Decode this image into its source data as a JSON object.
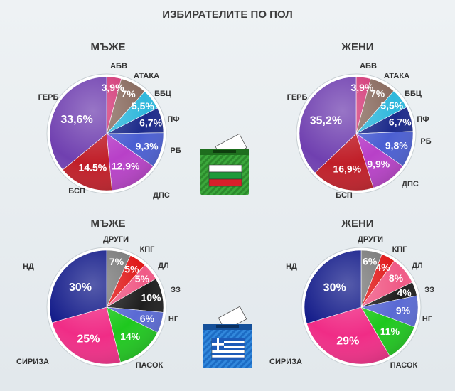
{
  "title": "ИЗБИРАТЕЛИТЕ ПО ПОЛ",
  "chart_data": [
    {
      "type": "pie",
      "title": "МЪЖЕ",
      "country": "Bulgaria",
      "categories": [
        "АБВ",
        "АТАКА",
        "ББЦ",
        "ПФ",
        "РБ",
        "ДПС",
        "БСП",
        "ГЕРБ"
      ],
      "values": [
        3.9,
        7,
        5.5,
        6.7,
        9.3,
        12.9,
        14.5,
        33.6
      ],
      "labels": [
        "3,9%",
        "7%",
        "5,5%",
        "6,7%",
        "9,3%",
        "12,9%",
        "14.5%",
        "33,6%"
      ],
      "colors": [
        "#d33a78",
        "#8a6c60",
        "#30b8dc",
        "#1c2a8a",
        "#4a5ed2",
        "#b840c8",
        "#c01e28",
        "#7040b0"
      ]
    },
    {
      "type": "pie",
      "title": "ЖЕНИ",
      "country": "Bulgaria",
      "categories": [
        "АБВ",
        "АТАКА",
        "ББЦ",
        "ПФ",
        "РБ",
        "ДПС",
        "БСП",
        "ГЕРБ"
      ],
      "values": [
        3.9,
        7,
        5.5,
        6.7,
        9.8,
        9.9,
        16.9,
        35.2
      ],
      "labels": [
        "3,9%",
        "7%",
        "5,5%",
        "6,7%",
        "9,8%",
        "9,9%",
        "16,9%",
        "35,2%"
      ],
      "colors": [
        "#d33a78",
        "#8a6c60",
        "#30b8dc",
        "#1c2a8a",
        "#4a5ed2",
        "#b840c8",
        "#c01e28",
        "#7040b0"
      ]
    },
    {
      "type": "pie",
      "title": "МЪЖЕ",
      "country": "Greece",
      "categories": [
        "ДРУГИ",
        "КПГ",
        "ДЛ",
        "ЗЗ",
        "НГ",
        "ПАСОК",
        "СИРИЗА",
        "НД"
      ],
      "values": [
        7,
        5,
        5,
        10,
        6,
        14,
        25,
        30
      ],
      "labels": [
        "7%",
        "5%",
        "5%",
        "10%",
        "6%",
        "14%",
        "25%",
        "30%"
      ],
      "colors": [
        "#7a7a7a",
        "#e01818",
        "#f05a86",
        "#1e1e1e",
        "#5a6ad4",
        "#1ec81e",
        "#f02c86",
        "#141c8a"
      ]
    },
    {
      "type": "pie",
      "title": "ЖЕНИ",
      "country": "Greece",
      "categories": [
        "ДРУГИ",
        "КПГ",
        "ДЛ",
        "ЗЗ",
        "НГ",
        "ПАСОК",
        "СИРИЗА",
        "НД"
      ],
      "values": [
        6,
        4,
        8,
        4,
        9,
        11,
        29,
        30
      ],
      "labels": [
        "6%",
        "4%",
        "8%",
        "4%",
        "9%",
        "11%",
        "29%",
        "30%"
      ],
      "colors": [
        "#7a7a7a",
        "#e01818",
        "#f05a86",
        "#1e1e1e",
        "#5a6ad4",
        "#1ec81e",
        "#f02c86",
        "#141c8a"
      ]
    }
  ]
}
